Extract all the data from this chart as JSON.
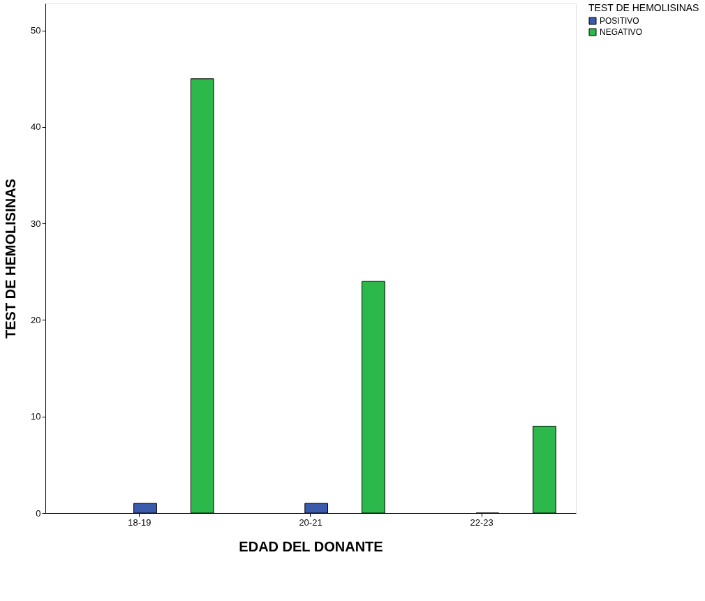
{
  "chart_data": {
    "type": "bar",
    "xlabel": "EDAD DEL DONANTE",
    "ylabel": "TEST DE HEMOLISINAS",
    "legend_title": "TEST DE HEMOLISINAS",
    "categories": [
      "18-19",
      "20-21",
      "22-23"
    ],
    "series": [
      {
        "name": "POSITIVO",
        "color": "#3a5bab",
        "values": [
          1,
          1,
          0
        ]
      },
      {
        "name": "NEGATIVO",
        "color": "#2db84b",
        "values": [
          45,
          24,
          9
        ]
      }
    ],
    "ylim": [
      0,
      52.8
    ],
    "yticks": [
      0,
      10,
      20,
      30,
      40,
      50
    ],
    "grid": false,
    "legend": "top right"
  }
}
